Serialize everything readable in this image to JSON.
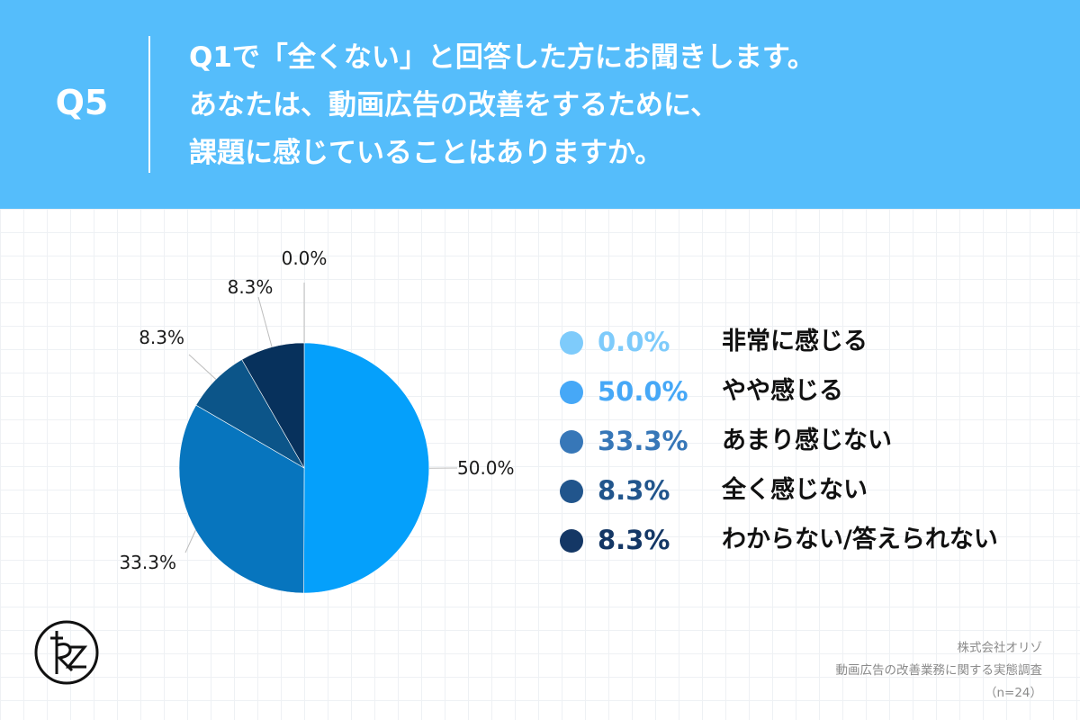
{
  "header": {
    "qnum": "Q5",
    "question_lines": [
      "Q1で「全くない」と回答した方にお聞きします。",
      "あなたは、動画広告の改善をするために、",
      "課題に感じていることはありますか。"
    ]
  },
  "chart_data": {
    "type": "pie",
    "categories": [
      "非常に感じる",
      "やや感じる",
      "あまり感じない",
      "全く感じない",
      "わからない/答えられない"
    ],
    "values": [
      0.0,
      50.0,
      33.3,
      8.3,
      8.3
    ],
    "value_labels": [
      "0.0%",
      "50.0%",
      "33.3%",
      "8.3%",
      "8.3%"
    ],
    "colors": [
      "#7ecbfb",
      "#46a8f7",
      "#3777b8",
      "#21558c",
      "#143765"
    ],
    "slice_colors": [
      "#7ecbfb",
      "#05a0fb",
      "#0775be",
      "#0c5589",
      "#07315c"
    ],
    "legend_placement": "right"
  },
  "footer": {
    "company": "株式会社オリゾ",
    "survey": "動画広告の改善業務に関する実態調査",
    "sample": "（n=24）"
  }
}
